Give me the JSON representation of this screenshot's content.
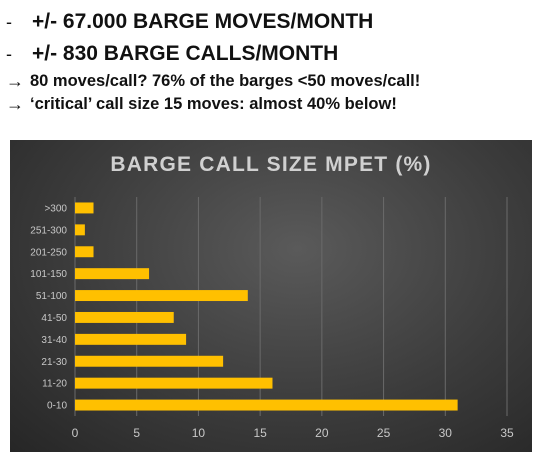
{
  "bullets": [
    {
      "marker": "-",
      "text": "+/- 67.000 BARGE MOVES/MONTH"
    },
    {
      "marker": "-",
      "text": "+/- 830 BARGE CALLS/MONTH"
    }
  ],
  "notes": [
    {
      "marker": "→",
      "text": "80 moves/call? 76% of the barges <50 moves/call!"
    },
    {
      "marker": "→",
      "text": "‘critical’ call size 15 moves: almost 40% below!"
    }
  ],
  "colors": {
    "bar": "#FFC000",
    "grid": "#6a6a6a",
    "tick": "#c8c8c8"
  },
  "chart_data": {
    "type": "bar",
    "orientation": "horizontal",
    "title": "BARGE CALL SIZE MPET (%)",
    "xlabel": "",
    "ylabel": "",
    "categories": [
      ">300",
      "251-300",
      "201-250",
      "101-150",
      "51-100",
      "41-50",
      "31-40",
      "21-30",
      "11-20",
      "0-10"
    ],
    "values": [
      1.5,
      0.8,
      1.5,
      6,
      14,
      8,
      9,
      12,
      16,
      31
    ],
    "xlim": [
      0,
      35
    ],
    "xticks": [
      0,
      5,
      10,
      15,
      20,
      25,
      30,
      35
    ],
    "grid": true,
    "legend": "none"
  }
}
